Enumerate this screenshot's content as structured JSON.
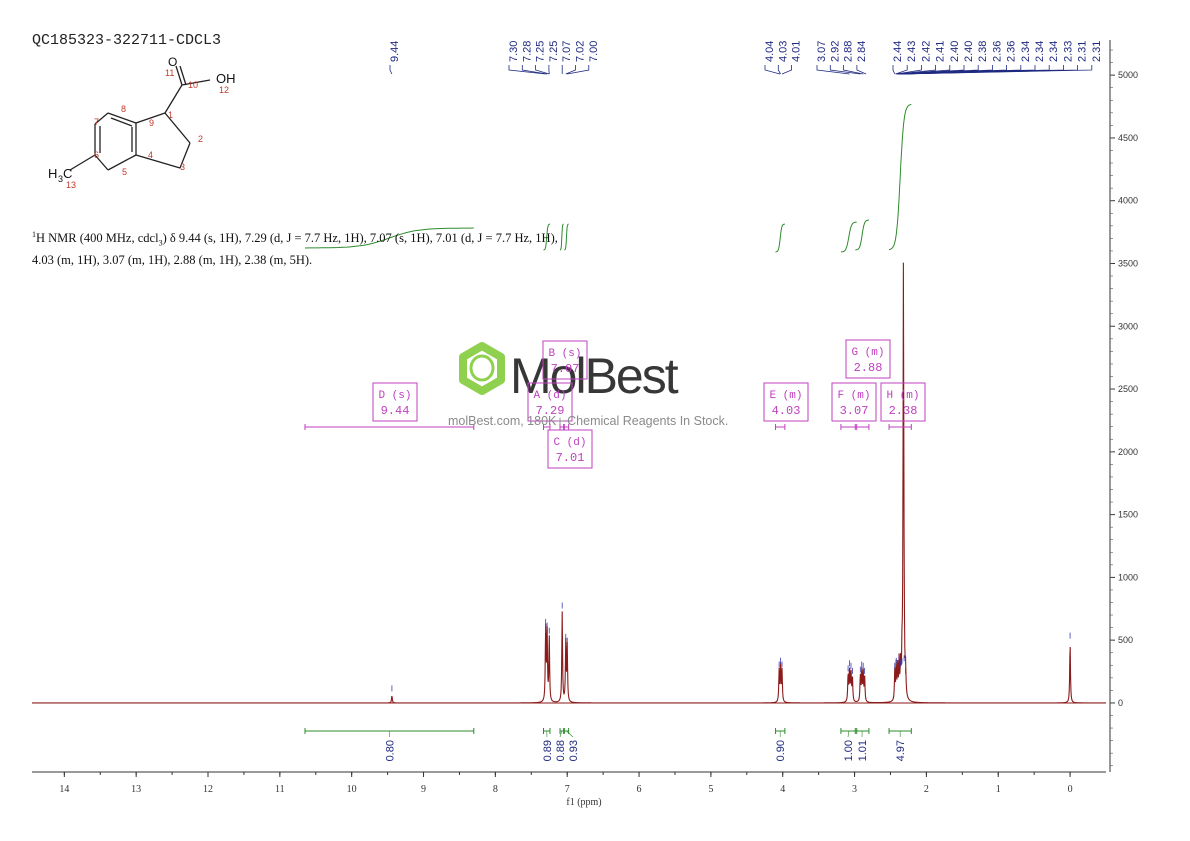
{
  "sample_id": "QC185323-322711-CDCL3",
  "description": {
    "line1_prefix": "H NMR (400 MHz, cdcl",
    "line1_rest": ") δ 9.44 (s, 1H), 7.29 (d, J = 7.7 Hz, 1H), 7.07 (s, 1H), 7.01 (d, J = 7.7 Hz, 1H),",
    "line2": "4.03 (m, 1H), 3.07 (m, 1H), 2.88 (m, 1H), 2.38 (m, 5H).",
    "superscript": "1",
    "subscript": "3"
  },
  "watermark": {
    "brand": "MolBest",
    "tagline": "molBest.com, 180K+ Chemical Reagents In Stock."
  },
  "structure": {
    "atom_labels": [
      "O",
      "OH",
      "H",
      "C",
      "3"
    ],
    "numbers": [
      "1",
      "2",
      "3",
      "4",
      "5",
      "6",
      "7",
      "8",
      "9",
      "10",
      "11",
      "12",
      "13"
    ]
  },
  "chart_data": {
    "type": "line",
    "xlabel": "f1 (ppm)",
    "x_ticks": [
      14,
      13,
      12,
      11,
      10,
      9,
      8,
      7,
      6,
      5,
      4,
      3,
      2,
      1,
      0
    ],
    "xlim": [
      14.45,
      -0.5
    ],
    "y_ticks": [
      0,
      500,
      1000,
      1500,
      2000,
      2500,
      3000,
      3500,
      4000,
      4500,
      5000
    ],
    "ylim": [
      -550,
      5280
    ],
    "colors": {
      "spectrum": "#8b1a1a",
      "integral": "#2e8b2e",
      "peak_label": "#1f2a80",
      "multiplet": "#c040c0"
    },
    "peak_labels": [
      "9.44",
      "7.30",
      "7.28",
      "7.25",
      "7.25",
      "7.07",
      "7.02",
      "7.00",
      "4.04",
      "4.03",
      "4.01",
      "3.07",
      "2.92",
      "2.88",
      "2.84",
      "2.44",
      "2.43",
      "2.42",
      "2.41",
      "2.40",
      "2.40",
      "2.38",
      "2.36",
      "2.36",
      "2.34",
      "2.34",
      "2.34",
      "2.33",
      "2.31",
      "2.31"
    ],
    "peaks": [
      {
        "ppm": 9.44,
        "height": 60
      },
      {
        "ppm": 7.3,
        "height": 590
      },
      {
        "ppm": 7.28,
        "height": 560
      },
      {
        "ppm": 7.25,
        "height": 520
      },
      {
        "ppm": 7.07,
        "height": 720
      },
      {
        "ppm": 7.02,
        "height": 470
      },
      {
        "ppm": 7.0,
        "height": 440
      },
      {
        "ppm": 4.05,
        "height": 250
      },
      {
        "ppm": 4.03,
        "height": 280
      },
      {
        "ppm": 4.01,
        "height": 250
      },
      {
        "ppm": 3.09,
        "height": 220
      },
      {
        "ppm": 3.07,
        "height": 260
      },
      {
        "ppm": 3.05,
        "height": 240
      },
      {
        "ppm": 3.03,
        "height": 200
      },
      {
        "ppm": 2.92,
        "height": 210
      },
      {
        "ppm": 2.9,
        "height": 250
      },
      {
        "ppm": 2.88,
        "height": 240
      },
      {
        "ppm": 2.86,
        "height": 200
      },
      {
        "ppm": 2.44,
        "height": 240
      },
      {
        "ppm": 2.42,
        "height": 280
      },
      {
        "ppm": 2.4,
        "height": 260
      },
      {
        "ppm": 2.38,
        "height": 300
      },
      {
        "ppm": 2.36,
        "height": 260
      },
      {
        "ppm": 2.34,
        "height": 280
      },
      {
        "ppm": 2.32,
        "height": 3420
      },
      {
        "ppm": 2.31,
        "height": 300
      },
      {
        "ppm": 2.29,
        "height": 200
      },
      {
        "ppm": 0.0,
        "height": 480
      }
    ],
    "multiplets": [
      {
        "letter": "D",
        "type": "s",
        "shift": "9.44",
        "from": 10.65,
        "to": 8.3
      },
      {
        "letter": "A",
        "type": "d",
        "shift": "7.29",
        "from": 7.33,
        "to": 7.24
      },
      {
        "letter": "B",
        "type": "s",
        "shift": "7.07",
        "from": 7.1,
        "to": 7.05
      },
      {
        "letter": "C",
        "type": "d",
        "shift": "7.01",
        "from": 7.04,
        "to": 6.98
      },
      {
        "letter": "E",
        "type": "m",
        "shift": "4.03",
        "from": 4.1,
        "to": 3.97
      },
      {
        "letter": "F",
        "type": "m",
        "shift": "3.07",
        "from": 3.19,
        "to": 2.97
      },
      {
        "letter": "G",
        "type": "m",
        "shift": "2.88",
        "from": 2.99,
        "to": 2.8
      },
      {
        "letter": "H",
        "type": "m",
        "shift": "2.38",
        "from": 2.52,
        "to": 2.21
      }
    ],
    "integrals": [
      {
        "from": 10.65,
        "to": 8.3,
        "value": "0.80"
      },
      {
        "from": 7.33,
        "to": 7.24,
        "value": "0.89"
      },
      {
        "from": 7.1,
        "to": 7.05,
        "value": "0.88"
      },
      {
        "from": 7.04,
        "to": 6.98,
        "value": "0.93"
      },
      {
        "from": 4.1,
        "to": 3.97,
        "value": "0.90"
      },
      {
        "from": 3.19,
        "to": 2.97,
        "value": "1.00"
      },
      {
        "from": 2.99,
        "to": 2.8,
        "value": "1.01"
      },
      {
        "from": 2.52,
        "to": 2.21,
        "value": "4.97"
      }
    ]
  }
}
